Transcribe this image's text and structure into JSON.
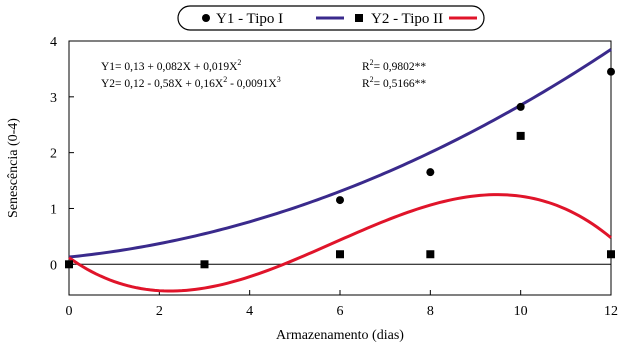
{
  "chart_data": {
    "type": "scatter",
    "xlabel": "Armazenamento (dias)",
    "ylabel": "Senescência (0-4)",
    "xlim": [
      0,
      12
    ],
    "ylim": [
      -0.55,
      4
    ],
    "x_ticks": [
      "0",
      "2",
      "4",
      "6",
      "8",
      "10",
      "12"
    ],
    "y_ticks": [
      "0",
      "1",
      "2",
      "3",
      "4"
    ],
    "grid": false,
    "legend_position": "top",
    "series": [
      {
        "name": "Y1 - Tipo I",
        "marker": "circle",
        "marker_color": "#000000",
        "line_color": "#3a2a8c",
        "points": [
          {
            "x": 6,
            "y": 1.15
          },
          {
            "x": 8,
            "y": 1.65
          },
          {
            "x": 10,
            "y": 2.82
          },
          {
            "x": 12,
            "y": 3.45
          }
        ],
        "coefficients": [
          0.13,
          0.082,
          0.019,
          0
        ]
      },
      {
        "name": "Y2 - Tipo II",
        "marker": "square",
        "marker_color": "#000000",
        "line_color": "#e0142a",
        "points": [
          {
            "x": 0,
            "y": 0
          },
          {
            "x": 3,
            "y": 0
          },
          {
            "x": 6,
            "y": 0.18
          },
          {
            "x": 8,
            "y": 0.18
          },
          {
            "x": 10,
            "y": 2.3
          },
          {
            "x": 12,
            "y": 0.18
          }
        ],
        "coefficients": [
          0.12,
          -0.58,
          0.16,
          -0.0091
        ]
      }
    ],
    "annotations": [
      {
        "eq": "Y1= 0,13 + 0,082X + 0,019X",
        "eq_sups": [
          "2"
        ],
        "r2": "R",
        "r2_sup": "2",
        "r2_val": "= 0,9802**"
      },
      {
        "eq": "Y2= 0,12 - 0,58X + 0,16X",
        "eq_sups": [
          "2",
          "3"
        ],
        "eq_mid": " - 0,0091X",
        "r2": "R",
        "r2_sup": "2",
        "r2_val": "= 0,5166**"
      }
    ]
  }
}
